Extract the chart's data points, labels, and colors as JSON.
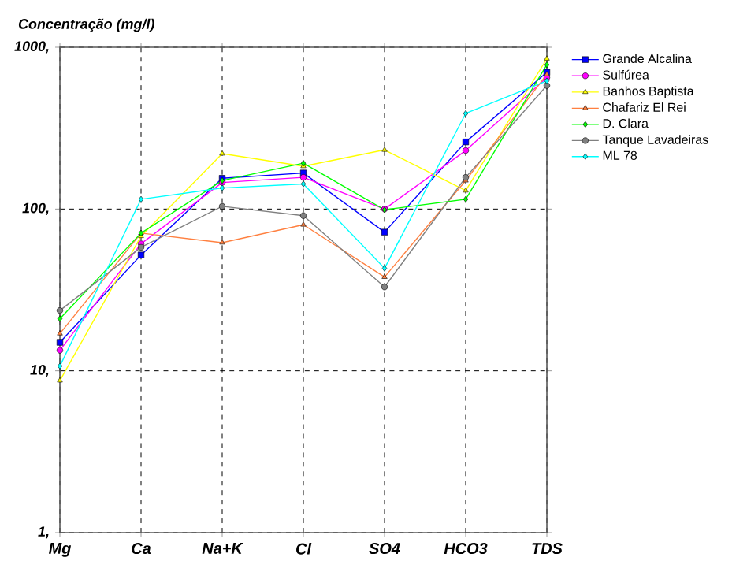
{
  "chart_data": {
    "type": "line",
    "ylabel": "Concentração (mg/l)",
    "categories": [
      "Mg",
      "Ca",
      "Na+K",
      "Cl",
      "SO4",
      "HCO3",
      "TDS"
    ],
    "log": "y",
    "ylim": [
      1,
      1000
    ],
    "yticks": [
      {
        "value": 1,
        "label": "1,"
      },
      {
        "value": 10,
        "label": "10,"
      },
      {
        "value": 100,
        "label": "100,"
      },
      {
        "value": 1000,
        "label": "1000,"
      }
    ],
    "grid": true,
    "legend": "top right",
    "series": [
      {
        "name": "Grande Alcalina",
        "color": "#0000ff",
        "marker": "square",
        "values": [
          15,
          52,
          155,
          167,
          72,
          260,
          700
        ]
      },
      {
        "name": "Sulfúrea",
        "color": "#ff00ff",
        "marker": "circle",
        "values": [
          13.4,
          61,
          146,
          157,
          100,
          230,
          650
        ]
      },
      {
        "name": "Banhos Baptista",
        "color": "#ffff00",
        "marker": "triangle",
        "values": [
          8.7,
          68,
          220,
          184,
          232,
          130,
          850
        ]
      },
      {
        "name": "Chafariz El Rei",
        "color": "#ff8040",
        "marker": "triangle",
        "values": [
          17,
          71,
          62,
          80,
          38,
          150,
          680
        ]
      },
      {
        "name": "D. Clara",
        "color": "#00ff00",
        "marker": "diamond",
        "values": [
          21,
          71,
          150,
          192,
          99,
          115,
          780
        ]
      },
      {
        "name": "Tanque Lavadeiras",
        "color": "#808080",
        "marker": "circle",
        "values": [
          23.6,
          58,
          104,
          91,
          33,
          157,
          580
        ]
      },
      {
        "name": "ML 78",
        "color": "#00ffff",
        "marker": "diamond",
        "values": [
          10.7,
          115,
          135,
          143,
          43,
          390,
          620
        ]
      }
    ]
  }
}
